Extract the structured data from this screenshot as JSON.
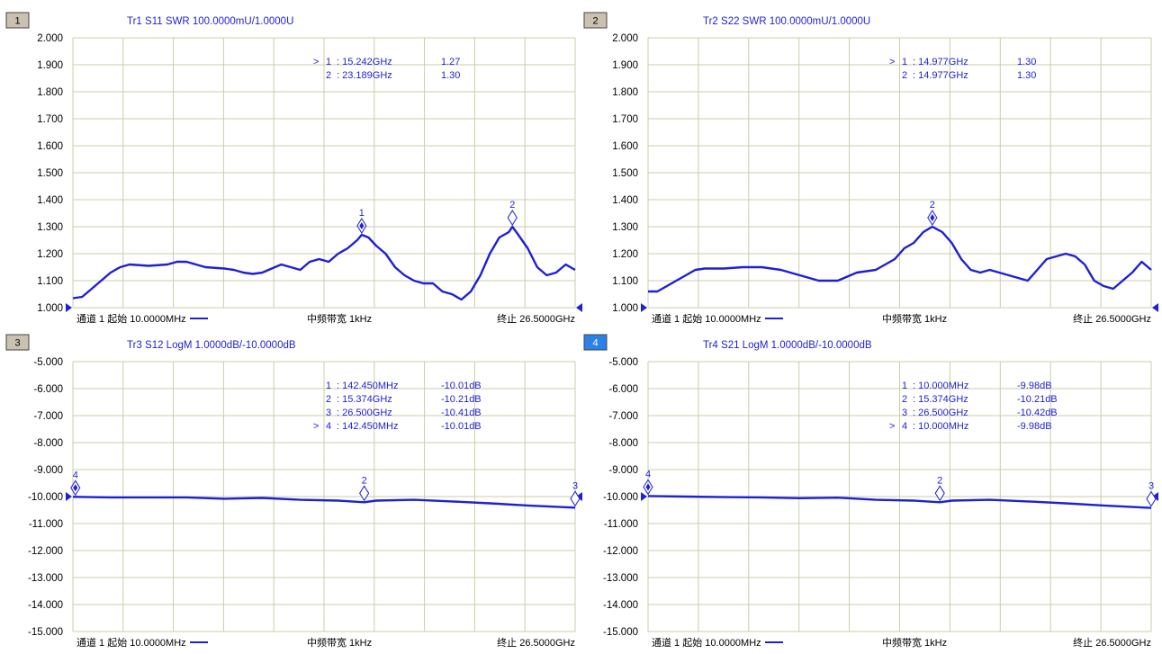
{
  "colors": {
    "trace": "#1f1fd6",
    "grid": "#c9cfa7",
    "text_blue": "#1f1fd6",
    "axis_text": "#000000",
    "panel_tag_bg": "#cbc1b1",
    "panel_tag_active_bg": "#2a82e8"
  },
  "footer": {
    "start": "通道 1 起始 10.0000MHz",
    "bandwidth": "中频带宽 1kHz",
    "stop": "终止 26.5000GHz"
  },
  "chart_data": [
    {
      "panel": "1",
      "active": false,
      "type": "line",
      "title": "Tr1 S11 SWR 100.0000mU/1.0000U",
      "xlabel": "",
      "ylabel": "",
      "x_range": [
        0.01,
        26.5
      ],
      "x_unit": "GHz",
      "ylim": [
        1.0,
        2.0
      ],
      "yticks": [
        "2.000",
        "1.900",
        "1.800",
        "1.700",
        "1.600",
        "1.500",
        "1.400",
        "1.300",
        "1.200",
        "1.100",
        "1.000"
      ],
      "grid": true,
      "series": [
        {
          "x": [
            0.01,
            0.5,
            1,
            1.5,
            2,
            2.5,
            3,
            4,
            5,
            5.5,
            6,
            7,
            8,
            8.5,
            9,
            9.5,
            10,
            11,
            11.5,
            12,
            12.5,
            13,
            13.5,
            14,
            14.5,
            15,
            15.242,
            15.6,
            16,
            16.5,
            17,
            17.5,
            18,
            18.5,
            19,
            19.5,
            20,
            20.5,
            21,
            21.5,
            22,
            22.5,
            23,
            23.189,
            23.5,
            24,
            24.5,
            25,
            25.5,
            26,
            26.5
          ],
          "y": [
            1.035,
            1.04,
            1.07,
            1.1,
            1.13,
            1.15,
            1.16,
            1.155,
            1.16,
            1.17,
            1.17,
            1.15,
            1.145,
            1.14,
            1.13,
            1.125,
            1.13,
            1.16,
            1.15,
            1.14,
            1.17,
            1.18,
            1.17,
            1.2,
            1.22,
            1.25,
            1.27,
            1.26,
            1.23,
            1.2,
            1.15,
            1.12,
            1.1,
            1.09,
            1.09,
            1.06,
            1.05,
            1.03,
            1.06,
            1.12,
            1.2,
            1.26,
            1.28,
            1.3,
            1.27,
            1.22,
            1.15,
            1.12,
            1.13,
            1.16,
            1.14
          ]
        }
      ],
      "markers": [
        {
          "id": "1",
          "x": 15.242,
          "y": 1.27,
          "label": "1",
          "active": true
        },
        {
          "id": "2",
          "x": 23.189,
          "y": 1.3,
          "label": "2",
          "active": false
        }
      ],
      "marker_table": [
        {
          "sel": ">",
          "num": "1",
          "freq": ": 15.242GHz",
          "val": "1.27"
        },
        {
          "sel": "",
          "num": "2",
          "freq": ": 23.189GHz",
          "val": "1.30"
        }
      ],
      "ref_left": "▶",
      "ref_right": "◀"
    },
    {
      "panel": "2",
      "active": false,
      "type": "line",
      "title": "Tr2 S22 SWR 100.0000mU/1.0000U",
      "xlabel": "",
      "ylabel": "",
      "x_range": [
        0.01,
        26.5
      ],
      "x_unit": "GHz",
      "ylim": [
        1.0,
        2.0
      ],
      "yticks": [
        "2.000",
        "1.900",
        "1.800",
        "1.700",
        "1.600",
        "1.500",
        "1.400",
        "1.300",
        "1.200",
        "1.100",
        "1.000"
      ],
      "grid": true,
      "series": [
        {
          "x": [
            0.01,
            0.5,
            1,
            1.5,
            2,
            2.5,
            3,
            4,
            5,
            6,
            7,
            8,
            8.5,
            9,
            9.5,
            10,
            11,
            12,
            12.5,
            13,
            13.5,
            14,
            14.5,
            14.977,
            15.5,
            16,
            16.5,
            17,
            17.5,
            18,
            18.5,
            19,
            19.5,
            20,
            20.5,
            21,
            21.5,
            22,
            22.5,
            23,
            23.5,
            24,
            24.5,
            25,
            25.5,
            26,
            26.5
          ],
          "y": [
            1.06,
            1.06,
            1.08,
            1.1,
            1.12,
            1.14,
            1.145,
            1.145,
            1.15,
            1.15,
            1.14,
            1.12,
            1.11,
            1.1,
            1.1,
            1.1,
            1.13,
            1.14,
            1.16,
            1.18,
            1.22,
            1.24,
            1.28,
            1.3,
            1.28,
            1.24,
            1.18,
            1.14,
            1.13,
            1.14,
            1.13,
            1.12,
            1.11,
            1.1,
            1.14,
            1.18,
            1.19,
            1.2,
            1.19,
            1.16,
            1.1,
            1.08,
            1.07,
            1.1,
            1.13,
            1.17,
            1.14
          ]
        }
      ],
      "markers": [
        {
          "id": "1",
          "x": 14.977,
          "y": 1.3,
          "label": "2",
          "active": true
        }
      ],
      "marker_table": [
        {
          "sel": ">",
          "num": "1",
          "freq": ": 14.977GHz",
          "val": "1.30"
        },
        {
          "sel": "",
          "num": "2",
          "freq": ": 14.977GHz",
          "val": "1.30"
        }
      ],
      "ref_left": "▶",
      "ref_right": "◀"
    },
    {
      "panel": "3",
      "active": false,
      "type": "line",
      "title": "Tr3 S12 LogM 1.0000dB/-10.0000dB",
      "xlabel": "",
      "ylabel": "",
      "x_range": [
        0.01,
        26.5
      ],
      "x_unit": "GHz",
      "ylim": [
        -15.0,
        -5.0
      ],
      "yticks": [
        "-5.000",
        "-6.000",
        "-7.000",
        "-8.000",
        "-9.000",
        "-10.000",
        "-11.000",
        "-12.000",
        "-13.000",
        "-14.000",
        "-15.000"
      ],
      "grid": true,
      "series": [
        {
          "x": [
            0.01,
            0.14245,
            2,
            4,
            6,
            8,
            10,
            12,
            14,
            15.374,
            16,
            18,
            20,
            22,
            24,
            26.5
          ],
          "y": [
            -10.01,
            -10.01,
            -10.03,
            -10.03,
            -10.03,
            -10.08,
            -10.05,
            -10.12,
            -10.15,
            -10.21,
            -10.15,
            -10.12,
            -10.18,
            -10.25,
            -10.33,
            -10.41
          ]
        }
      ],
      "markers": [
        {
          "id": "1",
          "x": 0.14245,
          "y": -10.01,
          "label": "4",
          "active": true
        },
        {
          "id": "2",
          "x": 15.374,
          "y": -10.21,
          "label": "2",
          "active": false
        },
        {
          "id": "3",
          "x": 26.5,
          "y": -10.41,
          "label": "3",
          "active": false
        }
      ],
      "marker_table": [
        {
          "sel": "",
          "num": "1",
          "freq": ": 142.450MHz",
          "val": "-10.01dB"
        },
        {
          "sel": "",
          "num": "2",
          "freq": ": 15.374GHz",
          "val": "-10.21dB"
        },
        {
          "sel": "",
          "num": "3",
          "freq": ": 26.500GHz",
          "val": "-10.41dB"
        },
        {
          "sel": ">",
          "num": "4",
          "freq": ": 142.450MHz",
          "val": "-10.01dB"
        }
      ],
      "ref_left": "▶",
      "ref_right": "◀"
    },
    {
      "panel": "4",
      "active": true,
      "type": "line",
      "title": "Tr4 S21 LogM 1.0000dB/-10.0000dB",
      "xlabel": "",
      "ylabel": "",
      "x_range": [
        0.01,
        26.5
      ],
      "x_unit": "GHz",
      "ylim": [
        -15.0,
        -5.0
      ],
      "yticks": [
        "-5.000",
        "-6.000",
        "-7.000",
        "-8.000",
        "-9.000",
        "-10.000",
        "-11.000",
        "-12.000",
        "-13.000",
        "-14.000",
        "-15.000"
      ],
      "grid": true,
      "series": [
        {
          "x": [
            0.01,
            2,
            4,
            6,
            8,
            10,
            12,
            14,
            15.374,
            16,
            18,
            20,
            22,
            24,
            26.5
          ],
          "y": [
            -9.98,
            -10.0,
            -10.02,
            -10.03,
            -10.06,
            -10.04,
            -10.12,
            -10.15,
            -10.21,
            -10.15,
            -10.12,
            -10.18,
            -10.25,
            -10.33,
            -10.42
          ]
        }
      ],
      "markers": [
        {
          "id": "1",
          "x": 0.01,
          "y": -9.98,
          "label": "4",
          "active": true
        },
        {
          "id": "2",
          "x": 15.374,
          "y": -10.21,
          "label": "2",
          "active": false
        },
        {
          "id": "3",
          "x": 26.5,
          "y": -10.42,
          "label": "3",
          "active": false
        }
      ],
      "marker_table": [
        {
          "sel": "",
          "num": "1",
          "freq": ": 10.000MHz",
          "val": "-9.98dB"
        },
        {
          "sel": "",
          "num": "2",
          "freq": ": 15.374GHz",
          "val": "-10.21dB"
        },
        {
          "sel": "",
          "num": "3",
          "freq": ": 26.500GHz",
          "val": "-10.42dB"
        },
        {
          "sel": ">",
          "num": "4",
          "freq": ": 10.000MHz",
          "val": "-9.98dB"
        }
      ],
      "ref_left": "▶",
      "ref_right": "◀"
    }
  ]
}
